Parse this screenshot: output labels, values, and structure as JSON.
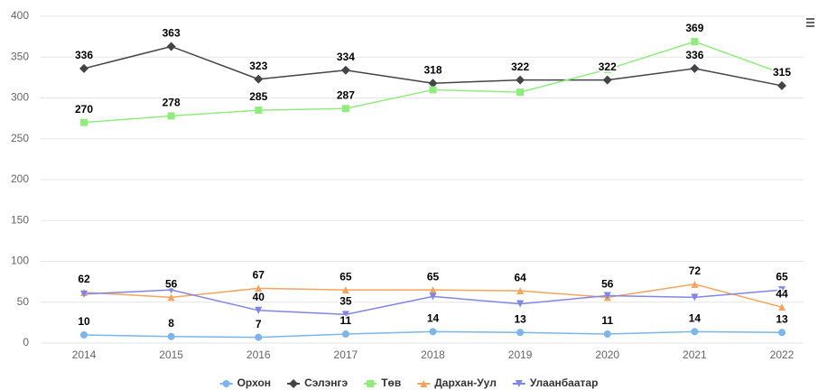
{
  "chart_data": {
    "type": "line",
    "categories": [
      "2014",
      "2015",
      "2016",
      "2017",
      "2018",
      "2019",
      "2020",
      "2021",
      "2022"
    ],
    "ylim": [
      0,
      400
    ],
    "yticks": [
      0,
      50,
      100,
      150,
      200,
      250,
      300,
      350,
      400
    ],
    "grid": true,
    "legend": "bottom",
    "series": [
      {
        "name": "Орхон",
        "color": "#7cb5ec",
        "values": [
          10,
          8,
          7,
          11,
          14,
          13,
          11,
          14,
          13
        ],
        "value_labels": [
          "10",
          "8",
          "7",
          "11",
          "14",
          "13",
          "11",
          "14",
          "13"
        ]
      },
      {
        "name": "Сэлэнгэ",
        "color": "#434348",
        "values": [
          336,
          363,
          323,
          334,
          318,
          322,
          322,
          336,
          315
        ],
        "value_labels": [
          "336",
          "363",
          "323",
          "334",
          "318",
          "322",
          "322",
          "336",
          "315"
        ]
      },
      {
        "name": "Төв",
        "color": "#90ed7d",
        "values": [
          270,
          278,
          285,
          287,
          310,
          307,
          335,
          369,
          330
        ],
        "value_labels": [
          "270",
          "278",
          "285",
          "287",
          null,
          null,
          null,
          "369",
          null
        ]
      },
      {
        "name": "Дархан-Уул",
        "color": "#f7a35c",
        "values": [
          62,
          56,
          67,
          65,
          65,
          64,
          56,
          72,
          44
        ],
        "value_labels": [
          "62",
          "56",
          "67",
          "65",
          "65",
          "64",
          "56",
          "72",
          "44"
        ]
      },
      {
        "name": "Улаанбаатар",
        "color": "#8085e9",
        "values": [
          60,
          65,
          40,
          35,
          57,
          48,
          58,
          56,
          65
        ],
        "value_labels": [
          null,
          null,
          "40",
          "35",
          null,
          null,
          null,
          null,
          "65"
        ]
      }
    ]
  }
}
